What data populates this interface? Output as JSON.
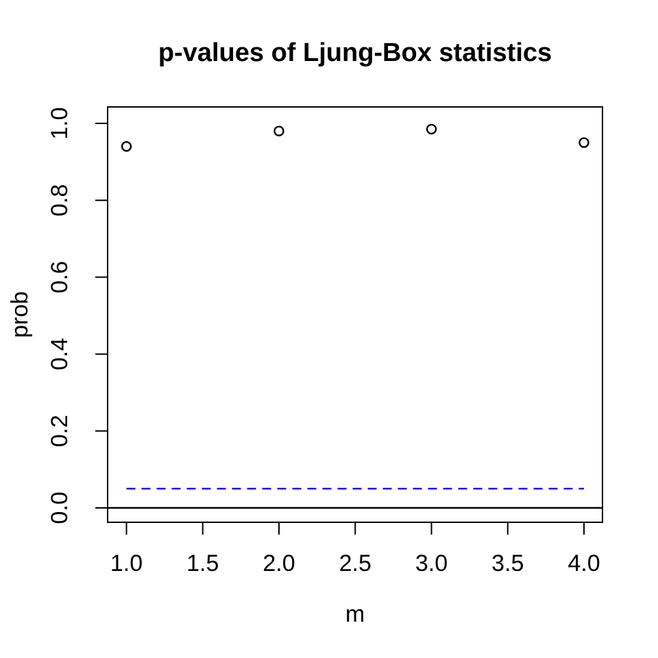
{
  "figure": {
    "background_color": "#ffffff",
    "foreground_color": "#000000"
  },
  "chart_data": {
    "type": "scatter",
    "title": "p-values of Ljung-Box statistics",
    "xlabel": "m",
    "ylabel": "prob",
    "x": [
      1,
      2,
      3,
      4
    ],
    "y": [
      0.94,
      0.98,
      0.985,
      0.95
    ],
    "point_style": "open-circle",
    "point_color": "#000000",
    "xlim": [
      0.88,
      4.12
    ],
    "ylim": [
      -0.04,
      1.04
    ],
    "x_tick_values": [
      1.0,
      1.5,
      2.0,
      2.5,
      3.0,
      3.5,
      4.0
    ],
    "x_tick_labels": [
      "1.0",
      "1.5",
      "2.0",
      "2.5",
      "3.0",
      "3.5",
      "4.0"
    ],
    "y_tick_values": [
      0.0,
      0.2,
      0.4,
      0.6,
      0.8,
      1.0
    ],
    "y_tick_labels": [
      "0.0",
      "0.2",
      "0.4",
      "0.6",
      "0.8",
      "1.0"
    ],
    "grid": false,
    "legend": null,
    "reference_lines": [
      {
        "orientation": "horizontal",
        "value": 0.05,
        "style": "dashed",
        "color": "#0000ff",
        "x_start": 1,
        "x_end": 4
      },
      {
        "orientation": "horizontal",
        "value": 0.0,
        "style": "solid",
        "color": "#000000",
        "x_start": null,
        "x_end": null
      }
    ]
  }
}
